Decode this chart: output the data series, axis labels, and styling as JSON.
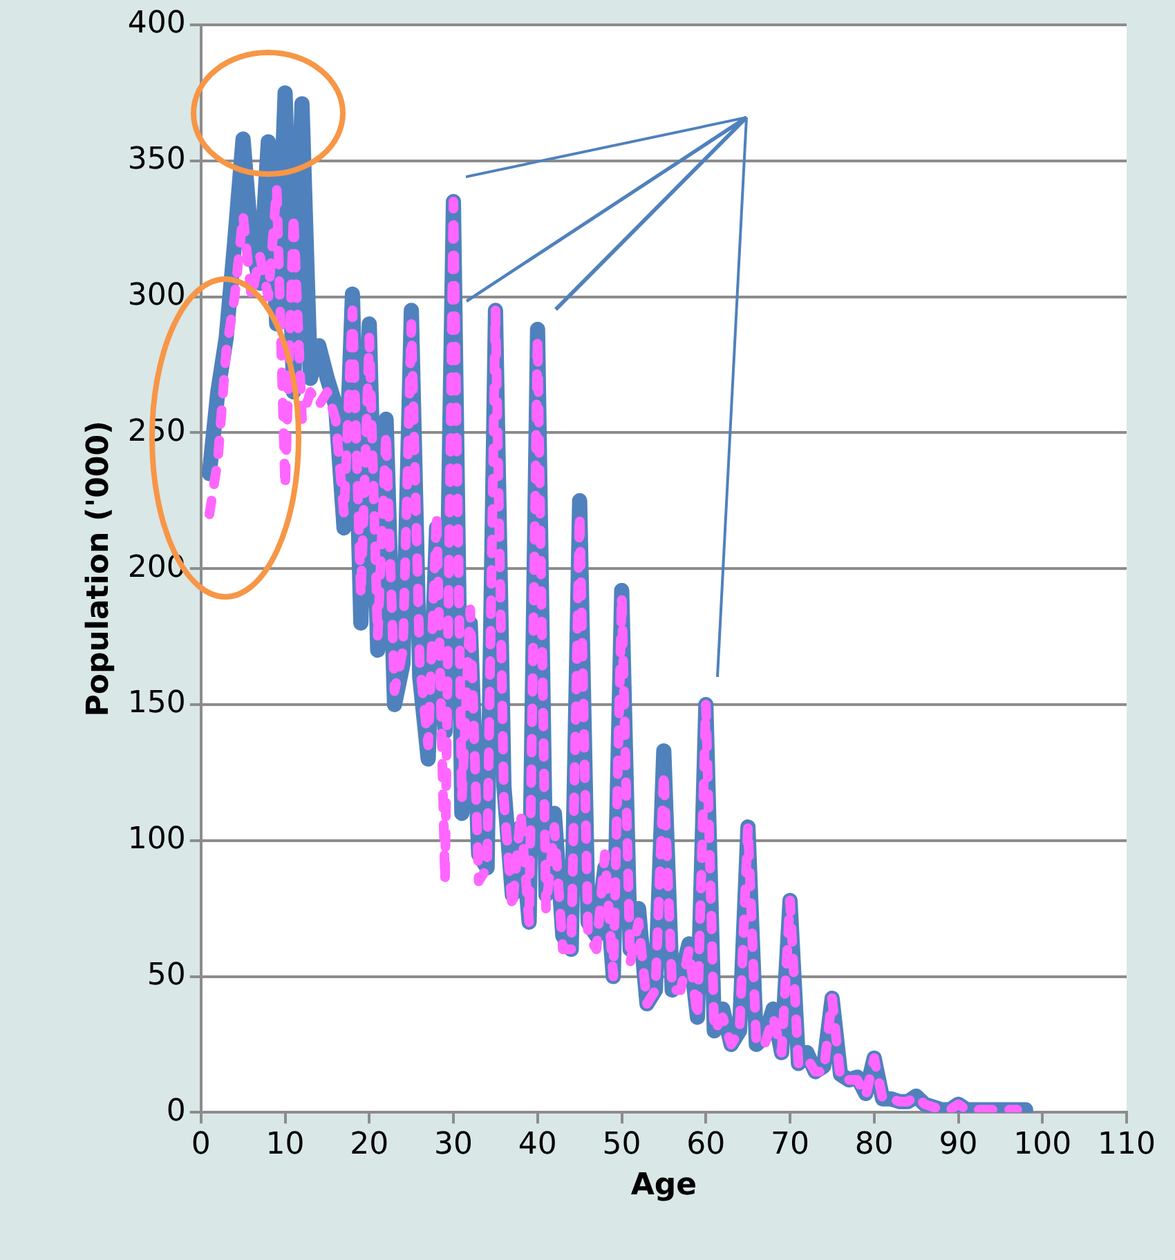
{
  "chart_data": {
    "type": "line",
    "xlabel": "Age",
    "ylabel": "Population ('000)",
    "xlim": [
      0,
      110
    ],
    "xticks": [
      0,
      10,
      20,
      30,
      40,
      50,
      60,
      70,
      80,
      90,
      100,
      110
    ],
    "ylim": [
      0,
      400
    ],
    "yticks": [
      0,
      50,
      100,
      150,
      200,
      250,
      300,
      350,
      400
    ],
    "grid": "y",
    "legend": false,
    "x": [
      1,
      2,
      3,
      4,
      5,
      6,
      7,
      8,
      9,
      10,
      11,
      12,
      13,
      14,
      15,
      16,
      17,
      18,
      19,
      20,
      21,
      22,
      23,
      24,
      25,
      26,
      27,
      28,
      29,
      30,
      31,
      32,
      33,
      34,
      35,
      36,
      37,
      38,
      39,
      40,
      41,
      42,
      43,
      44,
      45,
      46,
      47,
      48,
      49,
      50,
      51,
      52,
      53,
      54,
      55,
      56,
      57,
      58,
      59,
      60,
      61,
      62,
      63,
      64,
      65,
      66,
      67,
      68,
      69,
      70,
      71,
      72,
      73,
      74,
      75,
      76,
      77,
      78,
      79,
      80,
      81,
      82,
      83,
      84,
      85,
      86,
      87,
      88,
      89,
      90,
      91,
      92,
      93,
      94,
      95,
      96,
      97,
      98
    ],
    "series": [
      {
        "color": "#4f81bd",
        "line_style": "solid",
        "values": [
          235,
          265,
          285,
          320,
          358,
          320,
          305,
          357,
          290,
          375,
          265,
          371,
          270,
          282,
          270,
          260,
          215,
          301,
          180,
          290,
          170,
          255,
          150,
          165,
          295,
          160,
          130,
          215,
          140,
          335,
          110,
          180,
          95,
          90,
          295,
          120,
          80,
          105,
          70,
          288,
          80,
          110,
          65,
          60,
          225,
          70,
          65,
          90,
          50,
          192,
          60,
          75,
          40,
          45,
          133,
          45,
          50,
          62,
          35,
          150,
          30,
          38,
          25,
          30,
          105,
          25,
          28,
          38,
          22,
          78,
          18,
          22,
          15,
          17,
          42,
          14,
          12,
          13,
          7,
          20,
          5,
          5,
          4,
          4,
          6,
          3,
          2,
          1,
          1,
          3,
          1,
          1,
          1,
          1,
          1,
          1,
          1,
          1
        ]
      },
      {
        "color": "#ff66ff",
        "line_style": "dashed",
        "values": [
          220,
          240,
          280,
          300,
          330,
          300,
          315,
          300,
          340,
          230,
          330,
          255,
          265,
          260,
          265,
          255,
          220,
          295,
          190,
          285,
          175,
          250,
          155,
          170,
          290,
          165,
          135,
          220,
          85,
          335,
          115,
          185,
          85,
          90,
          295,
          115,
          75,
          110,
          70,
          285,
          75,
          105,
          60,
          60,
          220,
          65,
          60,
          95,
          50,
          190,
          55,
          70,
          40,
          45,
          125,
          45,
          45,
          60,
          35,
          150,
          30,
          35,
          25,
          30,
          105,
          25,
          25,
          35,
          22,
          78,
          18,
          20,
          15,
          15,
          42,
          12,
          12,
          12,
          6,
          20,
          5,
          5,
          4,
          4,
          6,
          3,
          2,
          1,
          1,
          3,
          1,
          1,
          1,
          1,
          1,
          1,
          1,
          null
        ]
      }
    ]
  }
}
